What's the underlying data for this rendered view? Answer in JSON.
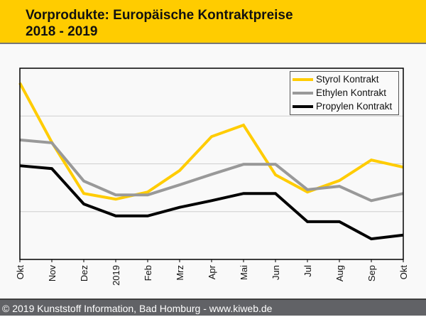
{
  "header": {
    "title_line1": "Vorprodukte: Europäische Kontraktpreise",
    "title_line2": "2018 - 2019"
  },
  "footer": {
    "text": "© 2019 Kunststoff Information, Bad Homburg - www.kiweb.de"
  },
  "colors": {
    "header_bg": "#ffcc00",
    "footer_bg": "#616266",
    "styrol": "#ffcc00",
    "ethylen": "#999999",
    "propylen": "#000000"
  },
  "chart_data": {
    "type": "line",
    "title": "Vorprodukte: Europäische Kontraktpreise 2018 - 2019",
    "xlabel": "",
    "ylabel": "",
    "y_axis_labels_shown": false,
    "ylim": [
      0,
      4
    ],
    "y_gridlines": [
      1,
      2,
      3
    ],
    "grid": true,
    "legend_position": "top-right",
    "categories": [
      "Okt",
      "Nov",
      "Dez",
      "2019",
      "Feb",
      "Mrz",
      "Apr",
      "Mai",
      "Jun",
      "Jul",
      "Aug",
      "Sep",
      "Okt"
    ],
    "series": [
      {
        "name": "Styrol Kontrakt",
        "color": "#ffcc00",
        "values": [
          3.69,
          2.45,
          1.38,
          1.26,
          1.41,
          1.86,
          2.57,
          2.81,
          1.77,
          1.41,
          1.65,
          2.08,
          1.93
        ]
      },
      {
        "name": "Ethylen Kontrakt",
        "color": "#999999",
        "values": [
          2.5,
          2.44,
          1.64,
          1.35,
          1.35,
          1.56,
          1.78,
          1.99,
          1.99,
          1.46,
          1.53,
          1.23,
          1.38
        ]
      },
      {
        "name": "Propylen Kontrakt",
        "color": "#000000",
        "values": [
          1.96,
          1.9,
          1.16,
          0.91,
          0.91,
          1.09,
          1.23,
          1.38,
          1.38,
          0.79,
          0.79,
          0.43,
          0.51
        ]
      }
    ]
  }
}
